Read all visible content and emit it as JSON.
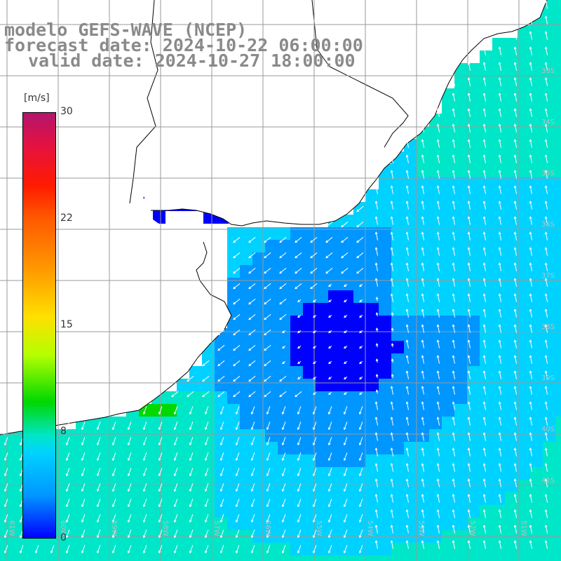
{
  "title": {
    "line1": "modelo GEFS-WAVE (NCEP)",
    "line2": "forecast date: 2024-10-22 06:00:00",
    "line3": "valid date: 2024-10-27 18:00:00"
  },
  "colorbar": {
    "unit": "[m/s]",
    "ticks": [
      "30",
      "22",
      "15",
      "8",
      "0"
    ],
    "colors": [
      "#0000ff",
      "#0096ff",
      "#00d2ff",
      "#00e6c8",
      "#00d800",
      "#b4ff00",
      "#ffe000",
      "#ff9a00",
      "#ff1a00",
      "#b4146e"
    ]
  },
  "map": {
    "lat_labels": [
      "33S",
      "34S",
      "35S",
      "36S",
      "37S",
      "38S",
      "39S",
      "40S",
      "41S"
    ],
    "lon_labels": [
      "61W",
      "60W",
      "59W",
      "58W",
      "57W",
      "56W",
      "55W",
      "54W",
      "53W",
      "52W",
      "51W"
    ],
    "land_color": "#ffffff",
    "grid_color": "#9a9a9a",
    "coast_color": "#000000"
  }
}
